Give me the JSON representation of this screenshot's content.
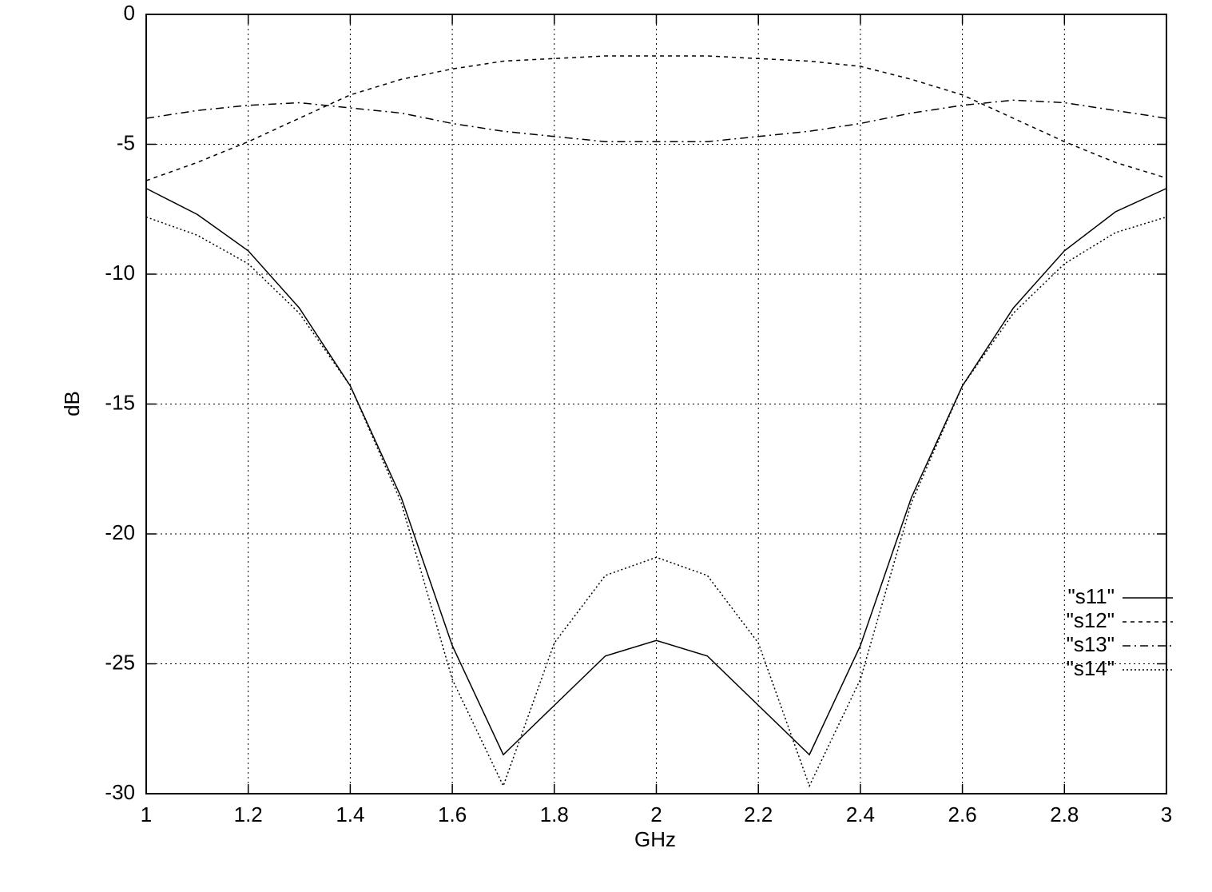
{
  "chart_data": {
    "type": "line",
    "x_label": "GHz",
    "y_label": "dB",
    "x": [
      1,
      1.1,
      1.2,
      1.3,
      1.4,
      1.5,
      1.6,
      1.7,
      1.8,
      1.9,
      2,
      2.1,
      2.2,
      2.3,
      2.4,
      2.5,
      2.6,
      2.7,
      2.8,
      2.9,
      3
    ],
    "series": [
      {
        "name": "\"s11\"",
        "color": "#000000",
        "dash": "solid",
        "values": [
          -6.7,
          -7.7,
          -9.1,
          -11.3,
          -14.3,
          -18.6,
          -24.3,
          -28.5,
          -26.6,
          -24.7,
          -24.1,
          -24.7,
          -26.6,
          -28.5,
          -24.3,
          -18.6,
          -14.3,
          -11.3,
          -9.1,
          -7.6,
          -6.7
        ]
      },
      {
        "name": "\"s12\"",
        "color": "#000000",
        "dash": "dashed",
        "values": [
          -6.4,
          -5.7,
          -4.9,
          -4.0,
          -3.1,
          -2.5,
          -2.1,
          -1.8,
          -1.7,
          -1.6,
          -1.6,
          -1.6,
          -1.7,
          -1.8,
          -2.0,
          -2.5,
          -3.1,
          -4.0,
          -4.9,
          -5.7,
          -6.3
        ]
      },
      {
        "name": "\"s13\"",
        "color": "#000000",
        "dash": "dashdot",
        "values": [
          -4.0,
          -3.7,
          -3.5,
          -3.4,
          -3.6,
          -3.8,
          -4.2,
          -4.5,
          -4.7,
          -4.9,
          -4.9,
          -4.9,
          -4.7,
          -4.5,
          -4.2,
          -3.8,
          -3.5,
          -3.3,
          -3.4,
          -3.7,
          -4.0
        ]
      },
      {
        "name": "\"s14\"",
        "color": "#000000",
        "dash": "dotted",
        "values": [
          -7.8,
          -8.5,
          -9.6,
          -11.5,
          -14.3,
          -18.8,
          -25.6,
          -29.7,
          -24.2,
          -21.6,
          -20.9,
          -21.6,
          -24.2,
          -29.7,
          -25.6,
          -18.8,
          -14.3,
          -11.5,
          -9.6,
          -8.4,
          -7.8
        ]
      }
    ],
    "xlim": [
      1,
      3
    ],
    "xticks": [
      1,
      1.2,
      1.4,
      1.6,
      1.8,
      2,
      2.2,
      2.4,
      2.6,
      2.8,
      3
    ],
    "ylim": [
      -30,
      0
    ],
    "yticks": [
      0,
      -5,
      -10,
      -15,
      -20,
      -25,
      -30
    ],
    "grid": true,
    "legend": "right"
  }
}
